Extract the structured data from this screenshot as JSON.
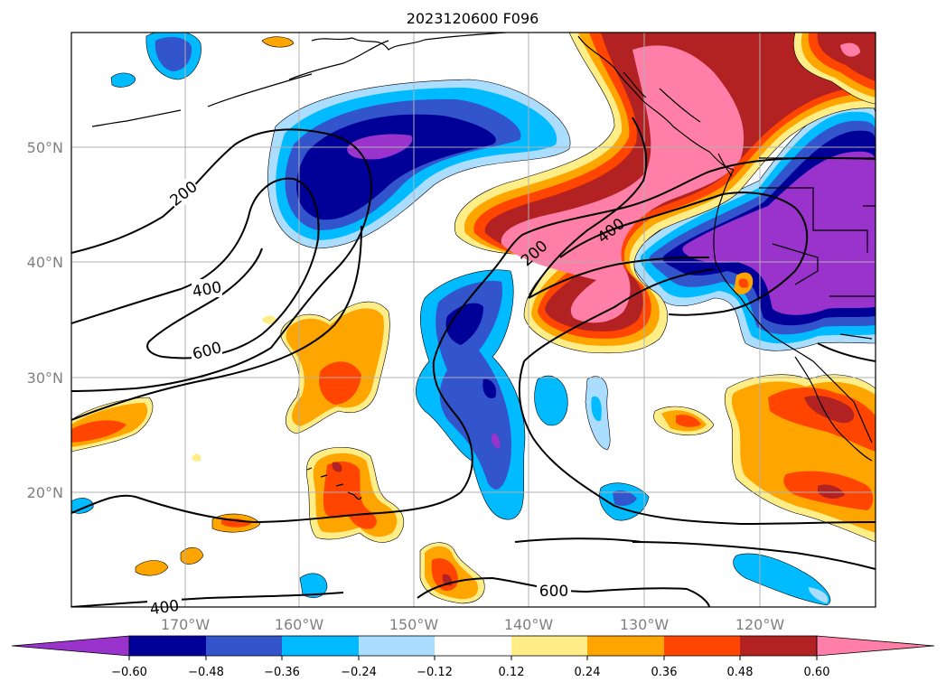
{
  "title": "2023120600 F096",
  "axes": {
    "lat_labels": [
      "50°N",
      "40°N",
      "30°N",
      "20°N"
    ],
    "lon_labels": [
      "170°W",
      "160°W",
      "150°W",
      "140°W",
      "130°W",
      "120°W"
    ],
    "lon_range": [
      -180,
      -110
    ],
    "lat_range": [
      10,
      60
    ],
    "grid": true
  },
  "colorbar": {
    "orientation": "horizontal",
    "extend": "both",
    "ticks": [
      "−0.60",
      "−0.48",
      "−0.36",
      "−0.24",
      "−0.12",
      "0.12",
      "0.24",
      "0.36",
      "0.48",
      "0.60"
    ],
    "colors": [
      "#9933cc",
      "#000099",
      "#3355cc",
      "#00bbff",
      "#aaddff",
      "#ffffff",
      "#ffee88",
      "#ffa500",
      "#ff4500",
      "#b22222",
      "#ff7fa8"
    ]
  },
  "contour_labels": [
    {
      "text": "200"
    },
    {
      "text": "400"
    },
    {
      "text": "600"
    },
    {
      "text": "200"
    },
    {
      "text": "400"
    },
    {
      "text": "600"
    },
    {
      "text": "400"
    }
  ]
}
